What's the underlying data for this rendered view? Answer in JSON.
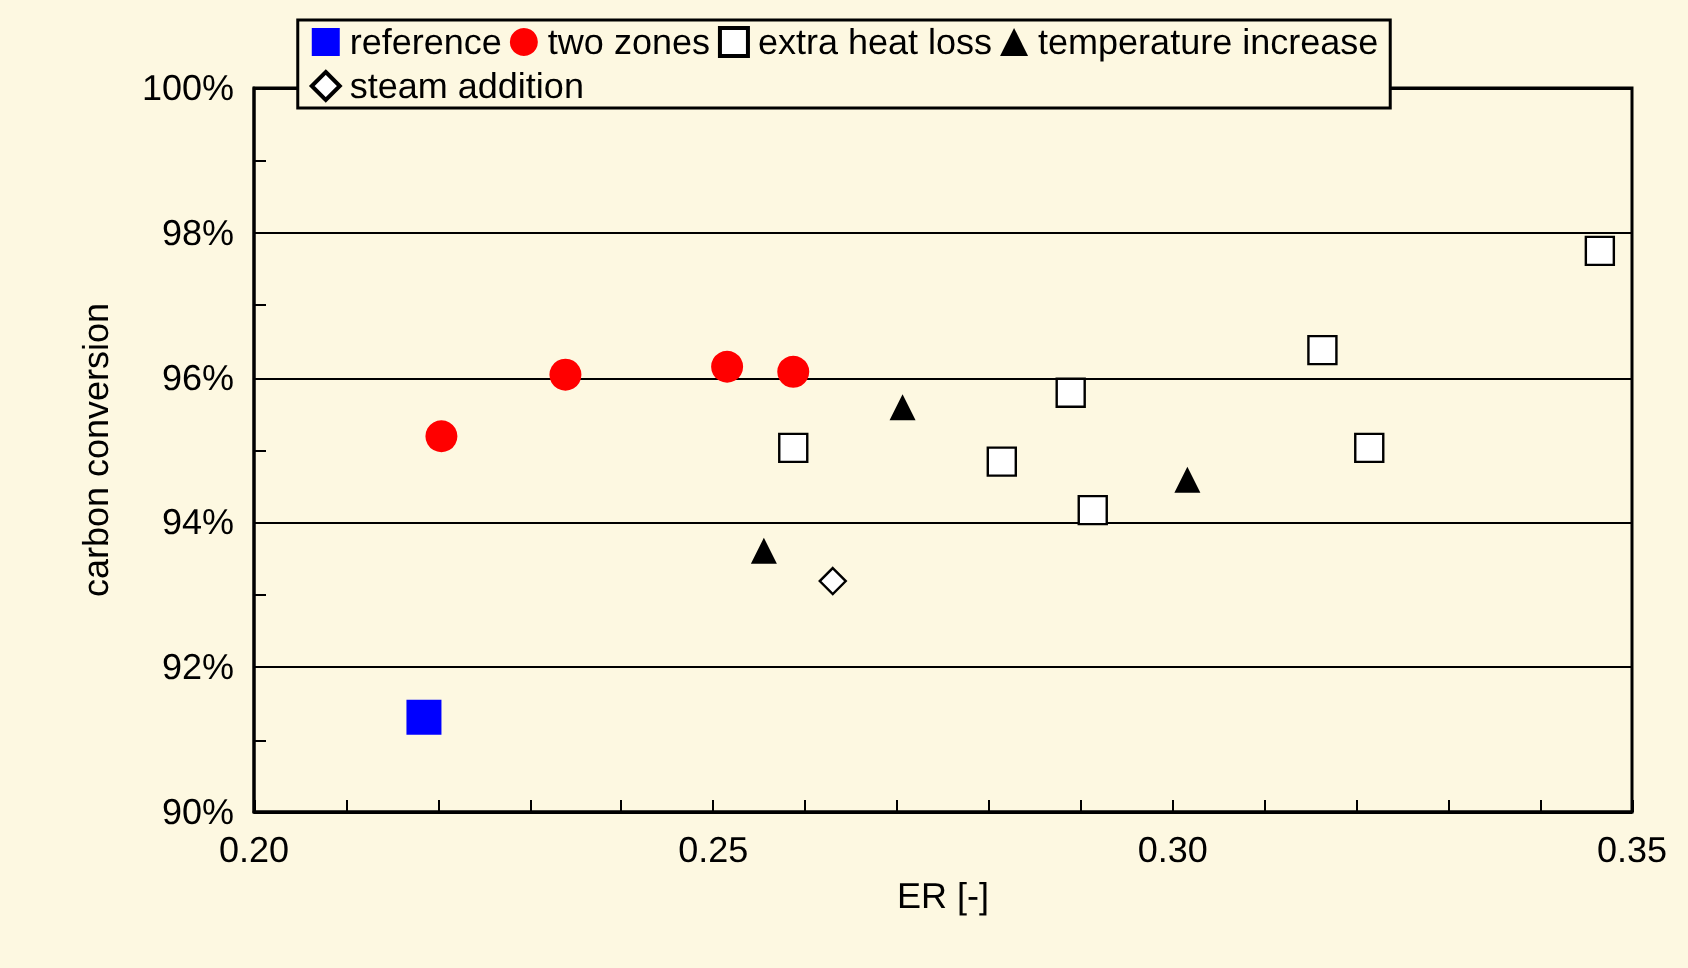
{
  "chart_data": {
    "type": "scatter",
    "xlabel": "ER [-]",
    "ylabel": "carbon conversion",
    "xlim": [
      0.2,
      0.35
    ],
    "ylim": [
      90,
      100
    ],
    "xticks": [
      {
        "value": 0.2,
        "label": "0.20"
      },
      {
        "value": 0.21,
        "label": null
      },
      {
        "value": 0.22,
        "label": null
      },
      {
        "value": 0.23,
        "label": null
      },
      {
        "value": 0.24,
        "label": null
      },
      {
        "value": 0.25,
        "label": "0.25"
      },
      {
        "value": 0.26,
        "label": null
      },
      {
        "value": 0.27,
        "label": null
      },
      {
        "value": 0.28,
        "label": null
      },
      {
        "value": 0.29,
        "label": null
      },
      {
        "value": 0.3,
        "label": "0.30"
      },
      {
        "value": 0.31,
        "label": null
      },
      {
        "value": 0.32,
        "label": null
      },
      {
        "value": 0.33,
        "label": null
      },
      {
        "value": 0.34,
        "label": null
      },
      {
        "value": 0.35,
        "label": "0.35"
      }
    ],
    "yticks": [
      {
        "value": 90,
        "label": "90%"
      },
      {
        "value": 91,
        "label": null
      },
      {
        "value": 92,
        "label": "92%"
      },
      {
        "value": 93,
        "label": null
      },
      {
        "value": 94,
        "label": "94%"
      },
      {
        "value": 95,
        "label": null
      },
      {
        "value": 96,
        "label": "96%"
      },
      {
        "value": 97,
        "label": null
      },
      {
        "value": 98,
        "label": "98%"
      },
      {
        "value": 99,
        "label": null
      },
      {
        "value": 100,
        "label": "100%"
      }
    ],
    "grid": "y",
    "legend": "top",
    "series": [
      {
        "name": "reference",
        "color": "#0000ff",
        "marker": "square",
        "x": [
          0.2185
        ],
        "values": [
          91.31
        ]
      },
      {
        "name": "two zones",
        "color": "#ff0000",
        "marker": "circle",
        "x": [
          0.2204,
          0.2339,
          0.2515,
          0.2587
        ],
        "values": [
          95.19,
          96.04,
          96.15,
          96.08
        ]
      },
      {
        "name": "extra heat loss",
        "color": "#ffffff",
        "marker": "square",
        "x": [
          0.2587,
          0.2814,
          0.2889,
          0.2913,
          0.3163,
          0.3214,
          0.3465
        ],
        "values": [
          95.03,
          94.84,
          95.79,
          94.17,
          96.38,
          95.03,
          97.75
        ]
      },
      {
        "name": "temperature increase",
        "color": "#000000",
        "marker": "triangle",
        "x": [
          0.2555,
          0.2706,
          0.3016
        ],
        "values": [
          93.61,
          95.59,
          94.59
        ]
      },
      {
        "name": "steam addition",
        "color": "#ffffff",
        "marker": "diamond",
        "x": [
          0.263
        ],
        "values": [
          93.19
        ]
      }
    ]
  }
}
